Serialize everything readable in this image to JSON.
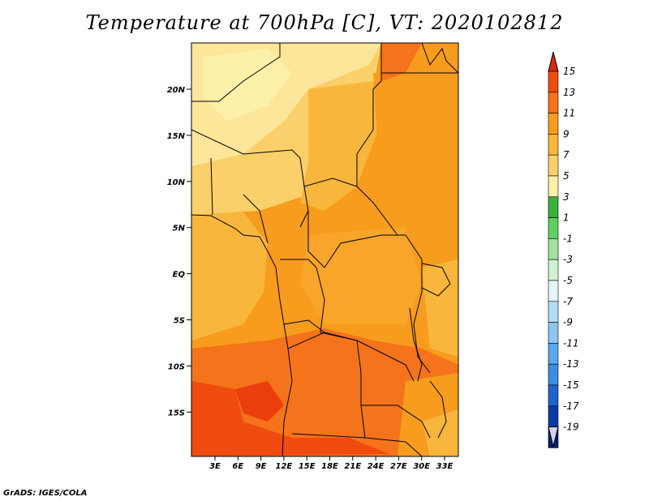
{
  "title": "Temperature at 700hPa [C], VT: 2020102812",
  "credit": "GrADS: IGES/COLA",
  "map": {
    "lat_ticks": [
      "20N",
      "15N",
      "10N",
      "5N",
      "EQ",
      "5S",
      "10S",
      "15S"
    ],
    "lon_ticks": [
      "3E",
      "6E",
      "9E",
      "12E",
      "15E",
      "18E",
      "21E",
      "24E",
      "27E",
      "30E",
      "33E"
    ]
  },
  "colorbar": {
    "labels": [
      "15",
      "13",
      "11",
      "9",
      "7",
      "5",
      "3",
      "1",
      "-1",
      "-3",
      "-5",
      "-7",
      "-9",
      "-11",
      "-13",
      "-15",
      "-17",
      "-19"
    ],
    "colors": [
      "#d92a0a",
      "#f04c10",
      "#f5731a",
      "#f79c1c",
      "#f9b63c",
      "#fbd06a",
      "#fdf0a8",
      "#37b237",
      "#5fcf5f",
      "#9ee39e",
      "#d1f2d1",
      "#e6f5fa",
      "#b4dcf5",
      "#8cc6f0",
      "#5aa8e8",
      "#3c8ce0",
      "#1e64cc",
      "#0a3aa6",
      "#041e70"
    ],
    "top_color": "#d92a0a",
    "bottom_color": "#d7d2f2"
  }
}
